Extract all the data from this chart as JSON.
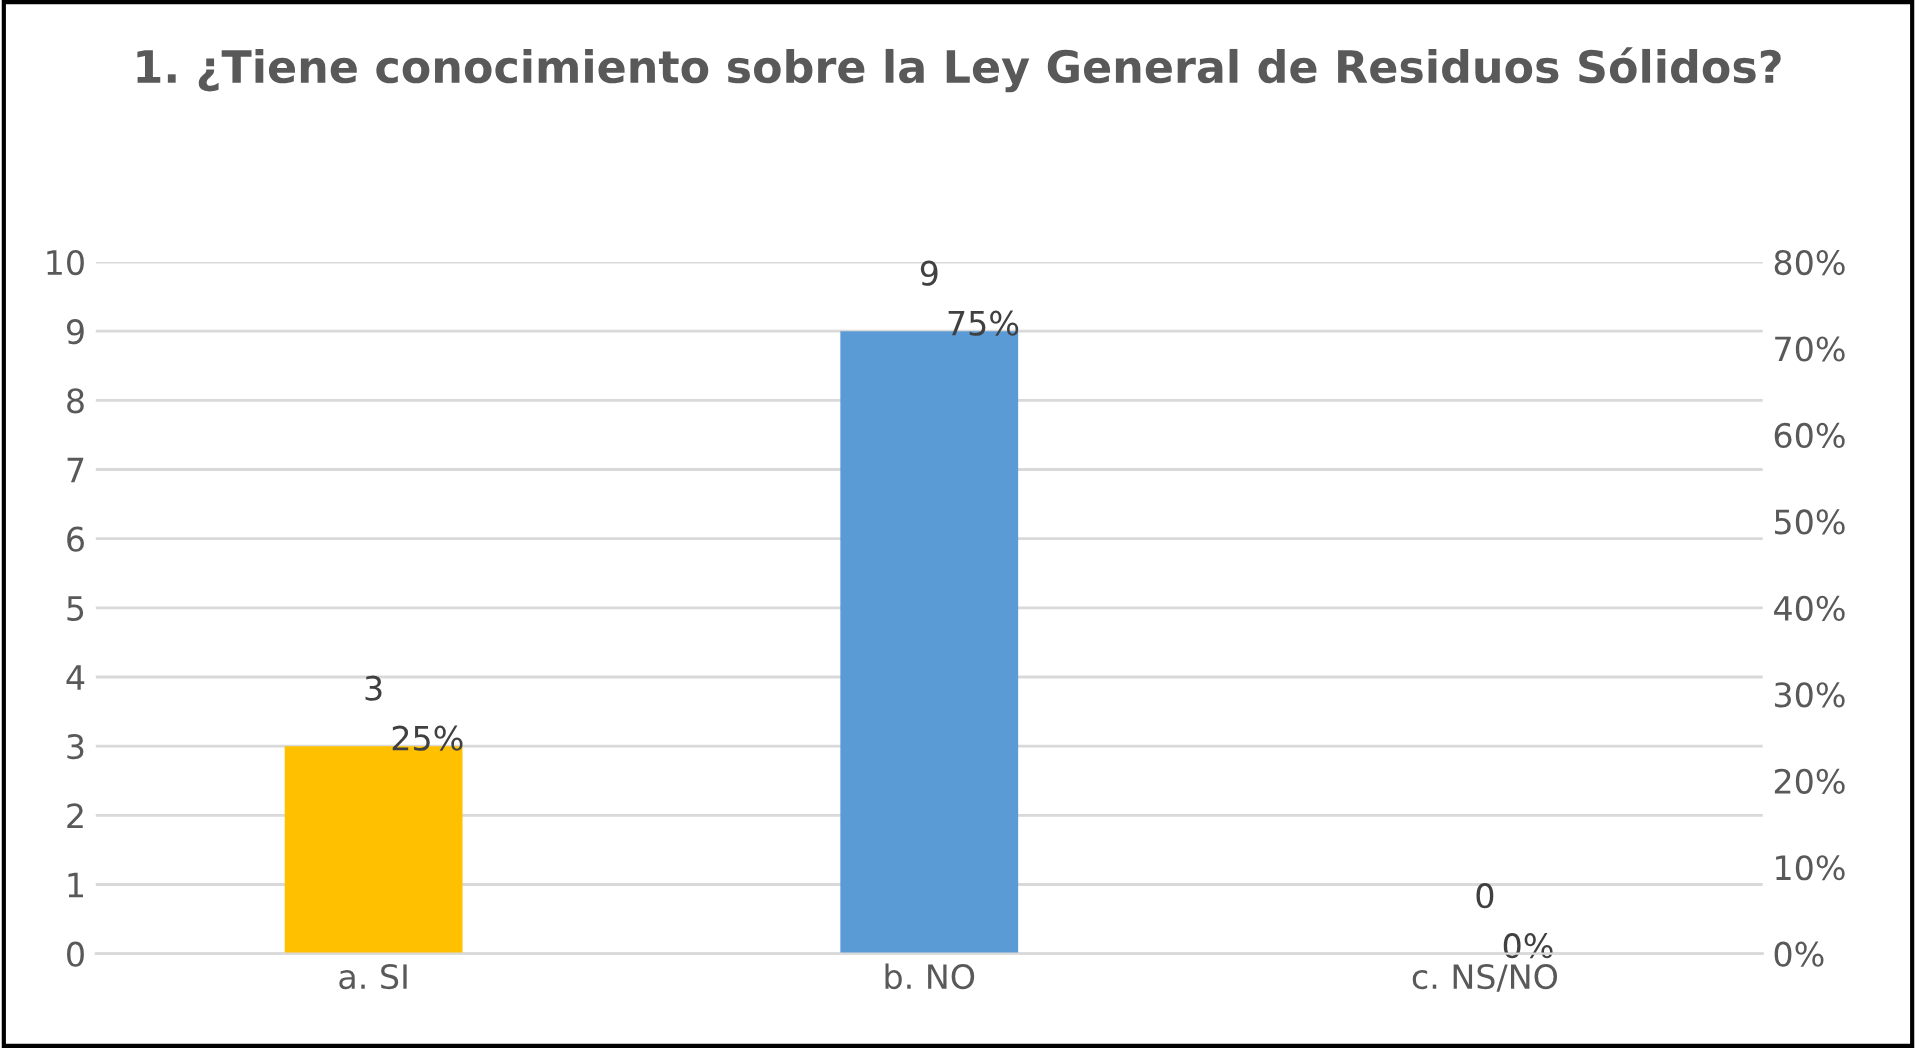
{
  "chart_data": {
    "type": "bar",
    "title": "1. ¿Tiene conocimiento sobre la Ley General de Residuos Sólidos?",
    "categories": [
      "a. SI",
      "b. NO",
      "c. NS/NO"
    ],
    "values": [
      3,
      9,
      0
    ],
    "colors": [
      "#ffc000",
      "#5b9bd5",
      "#a5a5a5"
    ],
    "data_labels": true,
    "ylim": [
      0,
      10
    ],
    "yticks": [
      0,
      1,
      2,
      3,
      4,
      5,
      6,
      7,
      8,
      9,
      10
    ],
    "y2lim": [
      0,
      80
    ],
    "y2ticks": [
      {
        "value": 0,
        "label": "0%"
      },
      {
        "value": 10,
        "label": "10%"
      },
      {
        "value": 20,
        "label": "20%"
      },
      {
        "value": 30,
        "label": "30%"
      },
      {
        "value": 40,
        "label": "40%"
      },
      {
        "value": 50,
        "label": "50%"
      },
      {
        "value": 60,
        "label": "60%"
      },
      {
        "value": 70,
        "label": "70%"
      },
      {
        "value": 80,
        "label": "80%"
      }
    ],
    "annotations": [
      {
        "text": "25%",
        "x": "a. SI",
        "y": 3
      },
      {
        "text": "75%",
        "x": "b. NO",
        "y": 9
      },
      {
        "text": "0%",
        "x": "c. NS/NO",
        "y": 0
      }
    ],
    "grid": "y",
    "legend": false
  }
}
